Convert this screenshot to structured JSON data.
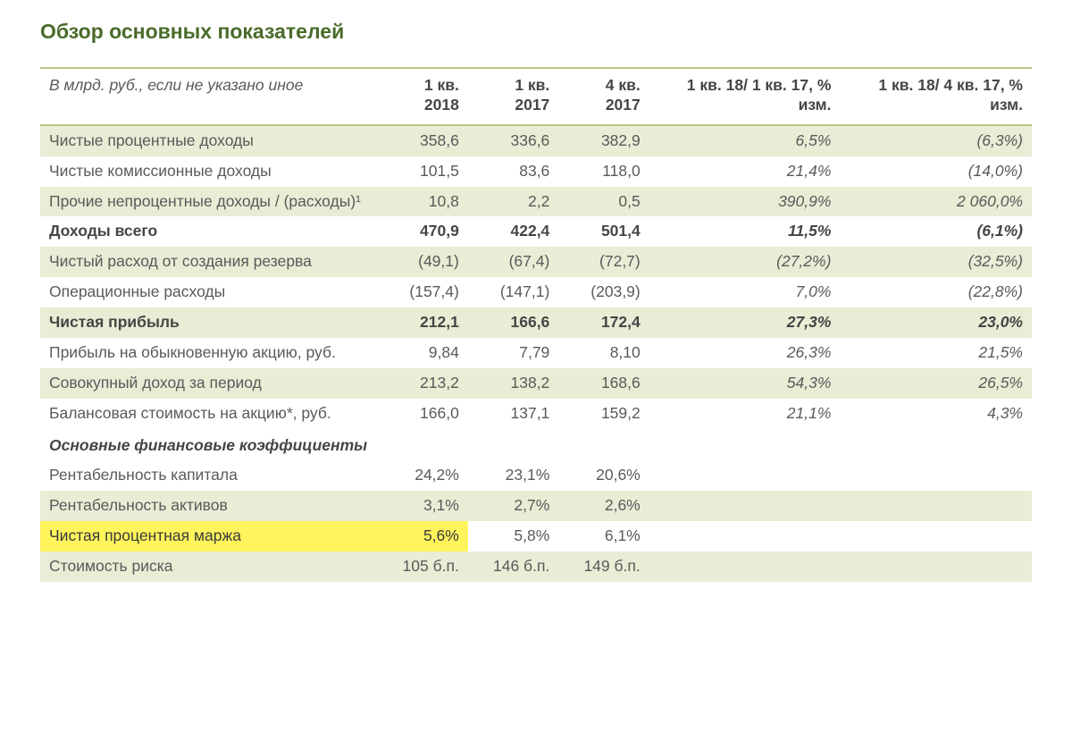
{
  "title": "Обзор основных показателей",
  "table": {
    "header": {
      "rowLabel": "В млрд. руб., если не указано иное",
      "cols": [
        "1 кв. 2018",
        "1 кв. 2017",
        "4 кв. 2017",
        "1 кв. 18/ 1 кв. 17, % изм.",
        "1 кв. 18/ 4 кв. 17, % изм."
      ]
    },
    "colStyles": {
      "italicCols": [
        3,
        4
      ]
    },
    "rows": [
      {
        "type": "data",
        "alt": true,
        "label": "Чистые процентные доходы",
        "values": [
          "358,6",
          "336,6",
          "382,9",
          "6,5%",
          "(6,3%)"
        ]
      },
      {
        "type": "data",
        "alt": false,
        "label": "Чистые комиссионные доходы",
        "values": [
          "101,5",
          "83,6",
          "118,0",
          "21,4%",
          "(14,0%)"
        ]
      },
      {
        "type": "data",
        "alt": true,
        "label": "Прочие непроцентные доходы / (расходы)¹",
        "values": [
          "10,8",
          "2,2",
          "0,5",
          "390,9%",
          "2 060,0%"
        ]
      },
      {
        "type": "data",
        "alt": false,
        "bold": true,
        "label": "Доходы всего",
        "values": [
          "470,9",
          "422,4",
          "501,4",
          "11,5%",
          "(6,1%)"
        ]
      },
      {
        "type": "data",
        "alt": true,
        "label": "Чистый расход от создания резерва",
        "values": [
          "(49,1)",
          "(67,4)",
          "(72,7)",
          "(27,2%)",
          "(32,5%)"
        ]
      },
      {
        "type": "data",
        "alt": false,
        "label": "Операционные расходы",
        "values": [
          "(157,4)",
          "(147,1)",
          "(203,9)",
          "7,0%",
          "(22,8%)"
        ]
      },
      {
        "type": "data",
        "alt": true,
        "bold": true,
        "label": "Чистая прибыль",
        "values": [
          "212,1",
          "166,6",
          "172,4",
          "27,3%",
          "23,0%"
        ]
      },
      {
        "type": "data",
        "alt": false,
        "label": "Прибыль на обыкновенную акцию, руб.",
        "values": [
          "9,84",
          "7,79",
          "8,10",
          "26,3%",
          "21,5%"
        ]
      },
      {
        "type": "data",
        "alt": true,
        "label": "Совокупный доход за период",
        "values": [
          "213,2",
          "138,2",
          "168,6",
          "54,3%",
          "26,5%"
        ]
      },
      {
        "type": "data",
        "alt": false,
        "label": "Балансовая стоимость на акцию*, руб.",
        "values": [
          "166,0",
          "137,1",
          "159,2",
          "21,1%",
          "4,3%"
        ]
      },
      {
        "type": "section",
        "label": "Основные финансовые коэффициенты"
      },
      {
        "type": "data",
        "alt": false,
        "label": "Рентабельность капитала",
        "values": [
          "24,2%",
          "23,1%",
          "20,6%",
          "",
          ""
        ]
      },
      {
        "type": "data",
        "alt": true,
        "label": "Рентабельность активов",
        "values": [
          "3,1%",
          "2,7%",
          "2,6%",
          "",
          ""
        ]
      },
      {
        "type": "data",
        "alt": false,
        "highlight": true,
        "highlightCols": [
          0
        ],
        "label": "Чистая процентная маржа",
        "values": [
          "5,6%",
          "5,8%",
          "6,1%",
          "",
          ""
        ]
      },
      {
        "type": "data",
        "alt": true,
        "label": "Стоимость риска",
        "values": [
          "105 б.п.",
          "146 б.п.",
          "149 б.п.",
          "",
          ""
        ]
      }
    ]
  },
  "style": {
    "background": "#ffffff",
    "titleColor": "#4a6b2a",
    "textColor": "#5a5a5a",
    "boldTextColor": "#454545",
    "borderColor": "#b8c485",
    "altRowBg": "#e8edd5",
    "highlightBg": "#fff45c",
    "fontFamily": "Verdana, Geneva, sans-serif",
    "baseFontSize": 17.5,
    "titleFontSize": 23
  }
}
